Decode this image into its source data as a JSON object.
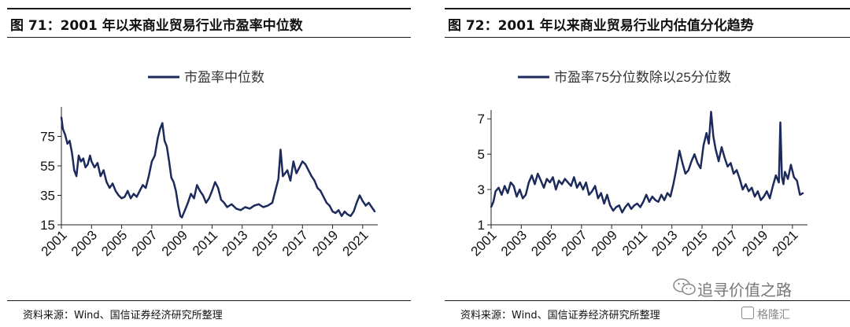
{
  "panels": [
    {
      "title": "图 71：2001 年以来商业贸易行业市盈率中位数",
      "source": "资料来源：Wind、国信证券经济研究所整理"
    },
    {
      "title": "图 72：2001 年以来商业贸易行业内估值分化趋势",
      "source": "资料来源：Wind、国信证券经济研究所整理"
    }
  ],
  "watermark": {
    "text": "追寻价值之路",
    "brand": "格隆汇",
    "icon": "wechat-icon"
  },
  "chart_data": [
    {
      "type": "line",
      "xlim": [
        2001,
        2022
      ],
      "ylim": [
        15,
        95
      ],
      "yticks": [
        15,
        35,
        55,
        75
      ],
      "xticks": [
        "2001",
        "2003",
        "2005",
        "2007",
        "2009",
        "2011",
        "2013",
        "2015",
        "2017",
        "2019",
        "2021"
      ],
      "grid": false,
      "legend_position": "top-center",
      "series": [
        {
          "name": "市盈率中位数",
          "color": "#1c2a5c",
          "x": [
            2001.0,
            2001.1,
            2001.25,
            2001.4,
            2001.55,
            2001.7,
            2001.85,
            2002.0,
            2002.15,
            2002.3,
            2002.45,
            2002.6,
            2002.75,
            2002.9,
            2003.0,
            2003.2,
            2003.4,
            2003.6,
            2003.8,
            2004.0,
            2004.2,
            2004.4,
            2004.6,
            2004.8,
            2005.0,
            2005.2,
            2005.4,
            2005.6,
            2005.8,
            2006.0,
            2006.2,
            2006.4,
            2006.6,
            2006.8,
            2007.0,
            2007.2,
            2007.4,
            2007.55,
            2007.7,
            2007.85,
            2008.0,
            2008.15,
            2008.3,
            2008.45,
            2008.6,
            2008.75,
            2008.9,
            2009.0,
            2009.2,
            2009.4,
            2009.6,
            2009.8,
            2010.0,
            2010.2,
            2010.4,
            2010.6,
            2010.8,
            2011.0,
            2011.2,
            2011.4,
            2011.6,
            2011.8,
            2012.0,
            2012.3,
            2012.6,
            2012.9,
            2013.2,
            2013.5,
            2013.8,
            2014.1,
            2014.4,
            2014.7,
            2015.0,
            2015.2,
            2015.4,
            2015.55,
            2015.7,
            2015.85,
            2016.0,
            2016.2,
            2016.4,
            2016.6,
            2016.8,
            2017.0,
            2017.2,
            2017.4,
            2017.6,
            2017.8,
            2018.0,
            2018.2,
            2018.4,
            2018.6,
            2018.8,
            2019.0,
            2019.2,
            2019.4,
            2019.6,
            2019.8,
            2020.0,
            2020.2,
            2020.4,
            2020.6,
            2020.8,
            2021.0,
            2021.2,
            2021.4,
            2021.6,
            2021.8
          ],
          "values": [
            88,
            80,
            76,
            70,
            72,
            64,
            52,
            48,
            62,
            58,
            60,
            54,
            56,
            62,
            58,
            54,
            57,
            48,
            52,
            44,
            40,
            43,
            38,
            35,
            33,
            34,
            38,
            33,
            36,
            34,
            38,
            42,
            40,
            48,
            58,
            62,
            74,
            80,
            84,
            72,
            68,
            58,
            47,
            44,
            38,
            28,
            21,
            20,
            25,
            30,
            36,
            33,
            42,
            38,
            35,
            30,
            33,
            38,
            44,
            40,
            32,
            30,
            27,
            29,
            26,
            25,
            27,
            26,
            28,
            29,
            27,
            28,
            30,
            38,
            46,
            66,
            48,
            50,
            52,
            45,
            58,
            50,
            54,
            58,
            56,
            52,
            48,
            45,
            40,
            38,
            34,
            30,
            28,
            24,
            23,
            25,
            21,
            24,
            22,
            21,
            24,
            30,
            35,
            31,
            28,
            30,
            27,
            24
          ]
        }
      ]
    },
    {
      "type": "line",
      "xlim": [
        2001,
        2022
      ],
      "ylim": [
        1,
        7.5
      ],
      "yticks": [
        1,
        3,
        5,
        7
      ],
      "xticks": [
        "2001",
        "2003",
        "2005",
        "2007",
        "2009",
        "2011",
        "2013",
        "2015",
        "2017",
        "2019",
        "2021"
      ],
      "grid": false,
      "legend_position": "top-center",
      "series": [
        {
          "name": "市盈率75分位数除以25分位数",
          "color": "#1c2a5c",
          "x": [
            2001.0,
            2001.15,
            2001.3,
            2001.5,
            2001.7,
            2001.9,
            2002.1,
            2002.3,
            2002.5,
            2002.7,
            2002.9,
            2003.1,
            2003.3,
            2003.5,
            2003.7,
            2003.9,
            2004.1,
            2004.3,
            2004.5,
            2004.7,
            2004.9,
            2005.1,
            2005.3,
            2005.5,
            2005.7,
            2005.9,
            2006.1,
            2006.3,
            2006.5,
            2006.7,
            2006.9,
            2007.1,
            2007.3,
            2007.5,
            2007.7,
            2007.9,
            2008.1,
            2008.3,
            2008.5,
            2008.7,
            2008.9,
            2009.1,
            2009.3,
            2009.5,
            2009.7,
            2009.9,
            2010.1,
            2010.3,
            2010.5,
            2010.7,
            2010.9,
            2011.1,
            2011.3,
            2011.5,
            2011.7,
            2011.9,
            2012.1,
            2012.3,
            2012.5,
            2012.7,
            2012.9,
            2013.1,
            2013.3,
            2013.5,
            2013.7,
            2013.9,
            2014.1,
            2014.3,
            2014.5,
            2014.7,
            2014.9,
            2015.1,
            2015.3,
            2015.45,
            2015.6,
            2015.75,
            2015.9,
            2016.1,
            2016.3,
            2016.5,
            2016.7,
            2016.9,
            2017.1,
            2017.3,
            2017.5,
            2017.7,
            2017.9,
            2018.1,
            2018.3,
            2018.5,
            2018.7,
            2018.9,
            2019.1,
            2019.3,
            2019.5,
            2019.7,
            2019.9,
            2020.1,
            2020.2,
            2020.3,
            2020.4,
            2020.5,
            2020.7,
            2020.9,
            2021.1,
            2021.3,
            2021.5,
            2021.7
          ],
          "values": [
            2.0,
            2.3,
            2.9,
            3.1,
            2.7,
            3.2,
            2.8,
            3.4,
            3.2,
            2.6,
            3.0,
            2.5,
            2.7,
            3.4,
            3.8,
            3.3,
            3.9,
            3.5,
            3.1,
            3.6,
            3.4,
            3.7,
            3.0,
            3.5,
            3.3,
            3.6,
            3.4,
            3.2,
            3.7,
            3.1,
            3.4,
            3.0,
            3.4,
            2.7,
            2.9,
            3.2,
            2.5,
            2.8,
            2.2,
            2.7,
            2.1,
            1.8,
            2.0,
            2.1,
            1.7,
            2.0,
            2.2,
            1.9,
            2.1,
            2.2,
            2.0,
            2.3,
            2.7,
            2.3,
            2.6,
            2.4,
            2.3,
            2.7,
            2.4,
            2.8,
            2.6,
            3.3,
            4.2,
            5.2,
            4.5,
            3.9,
            4.1,
            4.6,
            5.0,
            4.5,
            4.2,
            5.5,
            6.2,
            5.6,
            7.4,
            6.0,
            5.3,
            4.6,
            5.4,
            4.8,
            4.3,
            4.5,
            3.9,
            4.1,
            3.6,
            3.0,
            3.3,
            2.9,
            3.1,
            2.6,
            2.9,
            2.4,
            2.6,
            2.9,
            2.5,
            3.2,
            3.8,
            3.4,
            6.8,
            3.7,
            3.3,
            4.0,
            3.6,
            4.4,
            3.7,
            3.5,
            2.7,
            2.8
          ]
        }
      ]
    }
  ]
}
